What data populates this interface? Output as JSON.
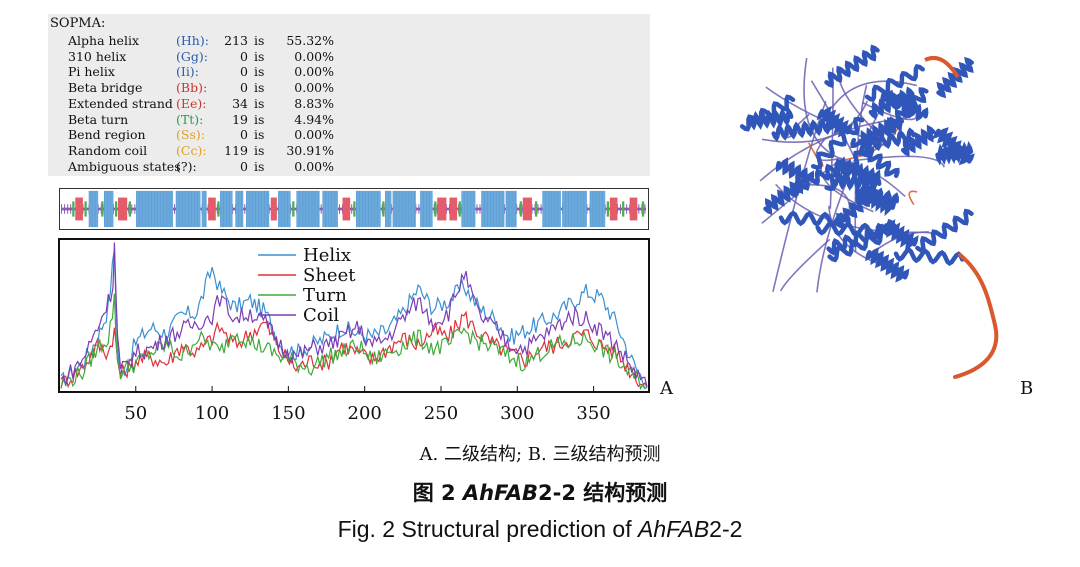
{
  "sopma": {
    "title": "SOPMA:",
    "rows": [
      {
        "name": "Alpha helix",
        "code": "(Hh):",
        "count": "213",
        "is": "is",
        "pct": "55.32%",
        "color": "#2a5caa"
      },
      {
        "name": "310 helix",
        "code": "(Gg):",
        "count": "0",
        "is": "is",
        "pct": "0.00%",
        "color": "#2a5caa"
      },
      {
        "name": "Pi helix",
        "code": "(Ii):",
        "count": "0",
        "is": "is",
        "pct": "0.00%",
        "color": "#2a5caa"
      },
      {
        "name": "Beta bridge",
        "code": "(Bb):",
        "count": "0",
        "is": "is",
        "pct": "0.00%",
        "color": "#d0312d"
      },
      {
        "name": "Extended strand",
        "code": "(Ee):",
        "count": "34",
        "is": "is",
        "pct": "8.83%",
        "color": "#d0312d"
      },
      {
        "name": "Beta turn",
        "code": "(Tt):",
        "count": "19",
        "is": "is",
        "pct": "4.94%",
        "color": "#2e9a4a"
      },
      {
        "name": "Bend region",
        "code": "(Ss):",
        "count": "0",
        "is": "is",
        "pct": "0.00%",
        "color": "#e0a020"
      },
      {
        "name": "Random coil",
        "code": "(Cc):",
        "count": "119",
        "is": "is",
        "pct": "30.91%",
        "color": "#e0a020"
      },
      {
        "name": "Ambiguous states",
        "code": "(?):",
        "count": "0",
        "is": "is",
        "pct": "0.00%",
        "color": "#111111"
      }
    ]
  },
  "ss_bar": {
    "length": 385,
    "colors": {
      "helix": "#6aa9dc",
      "strand": "#e45b6a",
      "turn": "#4caf50",
      "coil": "#8e5bb5"
    },
    "helix_segments": [
      [
        19,
        24
      ],
      [
        29,
        34
      ],
      [
        50,
        73
      ],
      [
        76,
        91
      ],
      [
        93,
        95
      ],
      [
        105,
        112
      ],
      [
        115,
        119
      ],
      [
        122,
        136
      ],
      [
        143,
        150
      ],
      [
        155,
        169
      ],
      [
        172,
        181
      ],
      [
        194,
        209
      ],
      [
        213,
        216
      ],
      [
        218,
        232
      ],
      [
        236,
        243
      ],
      [
        263,
        271
      ],
      [
        276,
        290
      ],
      [
        292,
        298
      ],
      [
        316,
        327
      ],
      [
        329,
        344
      ],
      [
        347,
        356
      ]
    ],
    "strand_segments": [
      [
        10,
        14
      ],
      [
        38,
        43
      ],
      [
        97,
        101
      ],
      [
        138,
        141
      ],
      [
        185,
        189
      ],
      [
        247,
        252
      ],
      [
        255,
        259
      ],
      [
        303,
        308
      ],
      [
        360,
        364
      ],
      [
        373,
        377
      ]
    ],
    "turn_positions": [
      8,
      16,
      27,
      36,
      45,
      103,
      152,
      192,
      211,
      245,
      261,
      301,
      311,
      358,
      368,
      381
    ]
  },
  "chart_data": {
    "type": "line",
    "x_range": [
      1,
      385
    ],
    "y_range": [
      0,
      1
    ],
    "xticks": [
      50,
      100,
      150,
      200,
      250,
      300,
      350
    ],
    "series": [
      {
        "name": "Helix",
        "color": "#3b8fd0",
        "points": [
          [
            1,
            0.05
          ],
          [
            15,
            0.18
          ],
          [
            25,
            0.35
          ],
          [
            32,
            0.55
          ],
          [
            36,
            0.95
          ],
          [
            38,
            0.3
          ],
          [
            40,
            0.08
          ],
          [
            50,
            0.32
          ],
          [
            60,
            0.42
          ],
          [
            70,
            0.38
          ],
          [
            80,
            0.5
          ],
          [
            90,
            0.52
          ],
          [
            100,
            0.82
          ],
          [
            105,
            0.68
          ],
          [
            115,
            0.55
          ],
          [
            125,
            0.6
          ],
          [
            135,
            0.52
          ],
          [
            145,
            0.3
          ],
          [
            155,
            0.25
          ],
          [
            165,
            0.3
          ],
          [
            175,
            0.35
          ],
          [
            185,
            0.42
          ],
          [
            195,
            0.38
          ],
          [
            205,
            0.36
          ],
          [
            215,
            0.4
          ],
          [
            225,
            0.52
          ],
          [
            235,
            0.68
          ],
          [
            245,
            0.55
          ],
          [
            255,
            0.6
          ],
          [
            265,
            0.7
          ],
          [
            275,
            0.55
          ],
          [
            285,
            0.48
          ],
          [
            295,
            0.35
          ],
          [
            305,
            0.4
          ],
          [
            315,
            0.45
          ],
          [
            325,
            0.5
          ],
          [
            335,
            0.58
          ],
          [
            345,
            0.66
          ],
          [
            355,
            0.62
          ],
          [
            365,
            0.45
          ],
          [
            375,
            0.2
          ],
          [
            385,
            0.02
          ]
        ]
      },
      {
        "name": "Sheet",
        "color": "#e0303a",
        "points": [
          [
            1,
            0.04
          ],
          [
            15,
            0.15
          ],
          [
            25,
            0.3
          ],
          [
            32,
            0.25
          ],
          [
            36,
            0.4
          ],
          [
            38,
            0.2
          ],
          [
            40,
            0.1
          ],
          [
            50,
            0.2
          ],
          [
            60,
            0.22
          ],
          [
            70,
            0.18
          ],
          [
            80,
            0.3
          ],
          [
            90,
            0.25
          ],
          [
            100,
            0.35
          ],
          [
            105,
            0.42
          ],
          [
            115,
            0.3
          ],
          [
            125,
            0.38
          ],
          [
            135,
            0.45
          ],
          [
            145,
            0.25
          ],
          [
            155,
            0.15
          ],
          [
            165,
            0.2
          ],
          [
            175,
            0.18
          ],
          [
            185,
            0.3
          ],
          [
            195,
            0.25
          ],
          [
            205,
            0.2
          ],
          [
            215,
            0.28
          ],
          [
            225,
            0.35
          ],
          [
            235,
            0.3
          ],
          [
            245,
            0.4
          ],
          [
            255,
            0.35
          ],
          [
            265,
            0.5
          ],
          [
            275,
            0.38
          ],
          [
            285,
            0.3
          ],
          [
            295,
            0.25
          ],
          [
            305,
            0.2
          ],
          [
            315,
            0.28
          ],
          [
            325,
            0.3
          ],
          [
            335,
            0.35
          ],
          [
            345,
            0.38
          ],
          [
            355,
            0.3
          ],
          [
            365,
            0.25
          ],
          [
            375,
            0.12
          ],
          [
            385,
            0.02
          ]
        ]
      },
      {
        "name": "Turn",
        "color": "#3faa3a",
        "points": [
          [
            1,
            0.03
          ],
          [
            15,
            0.12
          ],
          [
            25,
            0.28
          ],
          [
            32,
            0.35
          ],
          [
            36,
            0.6
          ],
          [
            38,
            0.2
          ],
          [
            40,
            0.12
          ],
          [
            50,
            0.18
          ],
          [
            60,
            0.25
          ],
          [
            70,
            0.3
          ],
          [
            80,
            0.22
          ],
          [
            90,
            0.35
          ],
          [
            100,
            0.3
          ],
          [
            105,
            0.25
          ],
          [
            115,
            0.4
          ],
          [
            125,
            0.32
          ],
          [
            135,
            0.28
          ],
          [
            145,
            0.22
          ],
          [
            155,
            0.18
          ],
          [
            165,
            0.15
          ],
          [
            175,
            0.22
          ],
          [
            185,
            0.25
          ],
          [
            195,
            0.3
          ],
          [
            205,
            0.2
          ],
          [
            215,
            0.25
          ],
          [
            225,
            0.3
          ],
          [
            235,
            0.35
          ],
          [
            245,
            0.28
          ],
          [
            255,
            0.3
          ],
          [
            265,
            0.4
          ],
          [
            275,
            0.32
          ],
          [
            285,
            0.28
          ],
          [
            295,
            0.22
          ],
          [
            305,
            0.18
          ],
          [
            315,
            0.25
          ],
          [
            325,
            0.3
          ],
          [
            335,
            0.32
          ],
          [
            345,
            0.35
          ],
          [
            355,
            0.28
          ],
          [
            365,
            0.2
          ],
          [
            375,
            0.1
          ],
          [
            385,
            0.02
          ]
        ]
      },
      {
        "name": "Coil",
        "color": "#7a3db5",
        "points": [
          [
            1,
            0.06
          ],
          [
            15,
            0.2
          ],
          [
            25,
            0.42
          ],
          [
            32,
            0.6
          ],
          [
            35,
            0.7
          ],
          [
            36,
            1.0
          ],
          [
            38,
            0.35
          ],
          [
            40,
            0.12
          ],
          [
            50,
            0.25
          ],
          [
            60,
            0.28
          ],
          [
            70,
            0.35
          ],
          [
            80,
            0.4
          ],
          [
            90,
            0.45
          ],
          [
            100,
            0.5
          ],
          [
            105,
            0.62
          ],
          [
            115,
            0.48
          ],
          [
            125,
            0.52
          ],
          [
            135,
            0.45
          ],
          [
            145,
            0.3
          ],
          [
            155,
            0.22
          ],
          [
            165,
            0.28
          ],
          [
            175,
            0.3
          ],
          [
            185,
            0.35
          ],
          [
            195,
            0.42
          ],
          [
            205,
            0.3
          ],
          [
            215,
            0.35
          ],
          [
            225,
            0.48
          ],
          [
            235,
            0.6
          ],
          [
            245,
            0.45
          ],
          [
            255,
            0.52
          ],
          [
            265,
            0.78
          ],
          [
            275,
            0.5
          ],
          [
            285,
            0.42
          ],
          [
            295,
            0.3
          ],
          [
            305,
            0.28
          ],
          [
            315,
            0.35
          ],
          [
            325,
            0.42
          ],
          [
            335,
            0.5
          ],
          [
            345,
            0.48
          ],
          [
            355,
            0.4
          ],
          [
            365,
            0.3
          ],
          [
            375,
            0.15
          ],
          [
            385,
            0.02
          ]
        ]
      }
    ]
  },
  "panel_labels": {
    "a": "A",
    "b": "B"
  },
  "caption": {
    "sub": "A. 二级结构; B. 三级结构预测",
    "cn_prefix": "图 2 ",
    "cn_gene_italic": "AhFAB",
    "cn_suffix": "2-2 结构预测",
    "en_prefix": "Fig. 2 Structural prediction of ",
    "en_gene_italic": "AhFAB",
    "en_suffix": "2-2"
  },
  "structure_colors": {
    "helix": "#2f56b8",
    "loop": "#d9582e",
    "mid": "#6a5fb0"
  }
}
